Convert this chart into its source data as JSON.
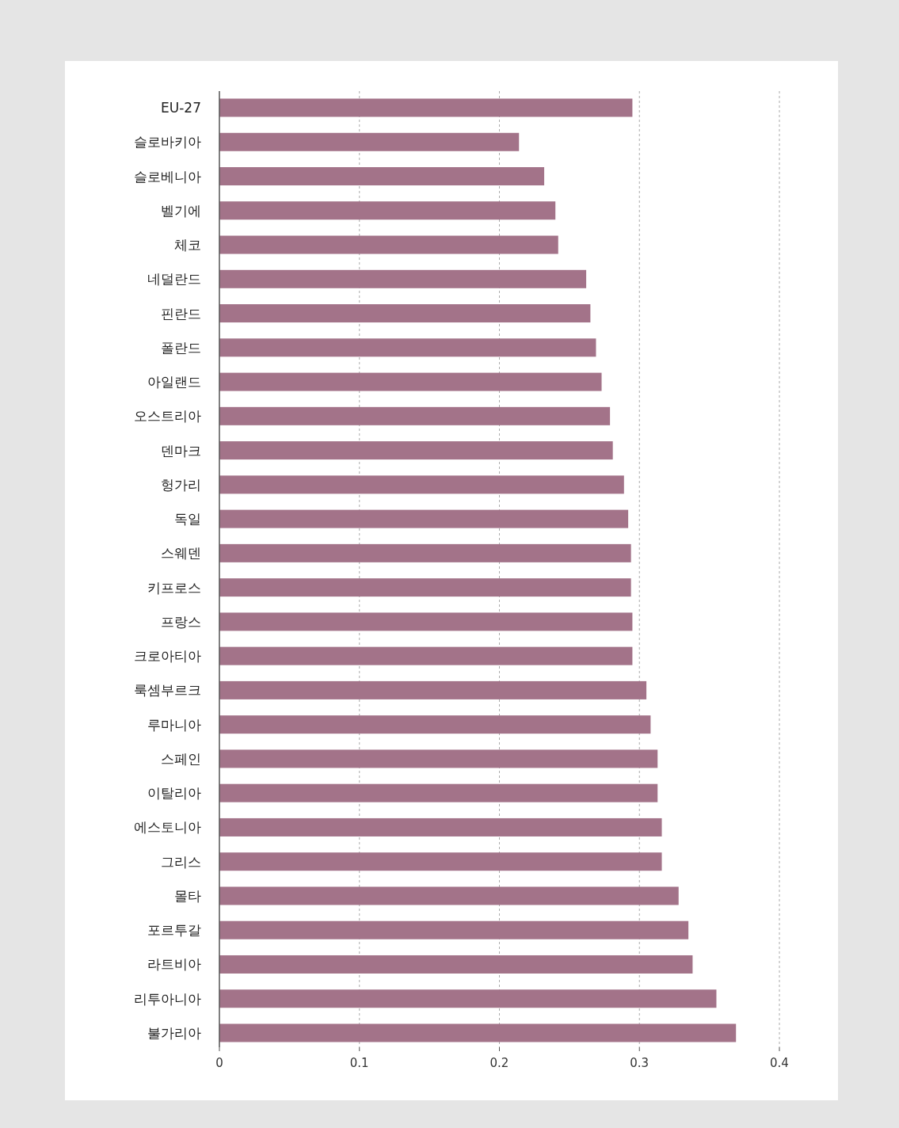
{
  "chart_data": {
    "type": "bar",
    "orientation": "horizontal",
    "categories": [
      "EU-27",
      "슬로바키아",
      "슬로베니아",
      "벨기에",
      "체코",
      "네덜란드",
      "핀란드",
      "폴란드",
      "아일랜드",
      "오스트리아",
      "덴마크",
      "헝가리",
      "독일",
      "스웨덴",
      "키프로스",
      "프랑스",
      "크로아티아",
      "룩셈부르크",
      "루마니아",
      "스페인",
      "이탈리아",
      "에스토니아",
      "그리스",
      "몰타",
      "포르투갈",
      "라트비아",
      "리투아니아",
      "불가리아"
    ],
    "series": [
      {
        "color": "#a37389",
        "values": [
          0.295,
          0.214,
          0.232,
          0.24,
          0.242,
          0.262,
          0.265,
          0.269,
          0.273,
          0.279,
          0.281,
          0.289,
          0.292,
          0.294,
          0.294,
          0.295,
          0.295,
          0.305,
          0.308,
          0.313,
          0.313,
          0.316,
          0.316,
          0.328,
          0.335,
          0.338,
          0.355,
          0.369
        ]
      }
    ],
    "xlim": [
      0,
      0.4
    ],
    "xticks": [
      0,
      0.1,
      0.2,
      0.3,
      0.4
    ],
    "grid": "x"
  }
}
